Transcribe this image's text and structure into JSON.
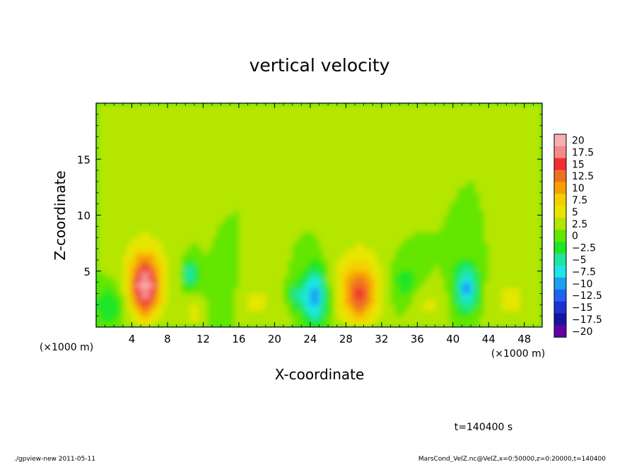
{
  "chart_data": {
    "type": "heatmap",
    "title": "vertical velocity",
    "xlabel": "X-coordinate",
    "ylabel": "Z-coordinate",
    "x_unit_left": "(×1000 m)",
    "x_unit_right": "(×1000 m)",
    "xlim": [
      0,
      50
    ],
    "ylim": [
      0,
      20
    ],
    "x_ticks": [
      4,
      8,
      12,
      16,
      20,
      24,
      28,
      32,
      36,
      40,
      44,
      48
    ],
    "y_ticks": [
      5,
      10,
      15
    ],
    "colorbar": {
      "labels": [
        "20",
        "17.5",
        "15",
        "12.5",
        "10",
        "7.5",
        "5",
        "2.5",
        "0",
        "−2.5",
        "−5",
        "−7.5",
        "−10",
        "−12.5",
        "−15",
        "−17.5",
        "−20"
      ],
      "levels": [
        20,
        17.5,
        15,
        12.5,
        10,
        7.5,
        5,
        2.5,
        0,
        -2.5,
        -5,
        -7.5,
        -10,
        -12.5,
        -15,
        -17.5,
        -20
      ],
      "colors": [
        "#f7b0b0",
        "#f58a8a",
        "#f03030",
        "#f07020",
        "#f7a000",
        "#f5d000",
        "#e6e600",
        "#b4e600",
        "#64e600",
        "#1ee628",
        "#1ee6a0",
        "#1ee6e6",
        "#1ea0f0",
        "#1e64f0",
        "#1e32d2",
        "#1414a0",
        "#6400a0"
      ]
    },
    "features": [
      {
        "x": 5.5,
        "z": 3.5,
        "value": 14,
        "sx": 1.1,
        "sz": 1.8
      },
      {
        "x": 5.5,
        "z": 5.0,
        "value": 5,
        "sx": 2.0,
        "sz": 2.6
      },
      {
        "x": 24.5,
        "z": 2.8,
        "value": -12,
        "sx": 0.9,
        "sz": 1.8
      },
      {
        "x": 22.5,
        "z": 2.8,
        "value": -6,
        "sx": 0.7,
        "sz": 0.9
      },
      {
        "x": 29.5,
        "z": 2.8,
        "value": 10,
        "sx": 1.3,
        "sz": 1.7
      },
      {
        "x": 29.5,
        "z": 4.5,
        "value": 4,
        "sx": 2.3,
        "sz": 2.6
      },
      {
        "x": 41.5,
        "z": 3.5,
        "value": -11,
        "sx": 1.0,
        "sz": 1.5
      },
      {
        "x": 10.5,
        "z": 4.8,
        "value": -7,
        "sx": 0.6,
        "sz": 0.9
      },
      {
        "x": 1.5,
        "z": 2.0,
        "value": -5,
        "sx": 1.2,
        "sz": 1.3
      },
      {
        "x": 34.5,
        "z": 4.0,
        "value": -4,
        "sx": 1.3,
        "sz": 1.5
      },
      {
        "x": 46.5,
        "z": 2.5,
        "value": 3,
        "sx": 2.0,
        "sz": 1.8
      },
      {
        "x": 18.0,
        "z": 2.2,
        "value": 3,
        "sx": 2.0,
        "sz": 1.5
      },
      {
        "x": 14.5,
        "z": 2.5,
        "value": -3,
        "sx": 1.0,
        "sz": 1.5
      },
      {
        "x": 11.0,
        "z": 1.2,
        "value": 4,
        "sx": 0.6,
        "sz": 0.8
      },
      {
        "x": 37.0,
        "z": 2.0,
        "value": 3,
        "sx": 1.5,
        "sz": 1.3
      }
    ]
  },
  "time_label": "t=140400 s",
  "footer_left": "./gpview-new  2011-05-11",
  "footer_right": "MarsCond_VelZ.nc@VelZ,x=0:50000,z=0:20000,t=140400"
}
